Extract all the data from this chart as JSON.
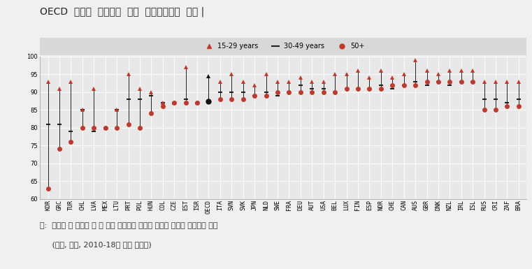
{
  "title": "OECD  국가의  연령층에  따른  사회적관계의  비교 |",
  "note_line1": "주:  필요할 때 도움을 줄 수 있는 친척이나 친구가 있다고 보고한 사람들의 비율",
  "note_line2": "     (연령, 비율, 2010-18년 통합 데이터)",
  "countries": [
    "KOR",
    "GRC",
    "TUR",
    "CHL",
    "LVA",
    "MEX",
    "LTU",
    "PRT",
    "POL",
    "HUN",
    "COL",
    "CZE",
    "EST",
    "ISR",
    "OECD",
    "ITA",
    "SVN",
    "SVK",
    "JPN",
    "NLD",
    "SWE",
    "FRA",
    "DEU",
    "AUT",
    "USA",
    "BEL",
    "LUX",
    "FIN",
    "ESP",
    "NOR",
    "CHE",
    "CAN",
    "AUS",
    "GBR",
    "DNK",
    "NZL",
    "IRL",
    "ISL",
    "RUS",
    "CRI",
    "ZAF",
    "BRA"
  ],
  "y15_29": [
    93,
    91,
    93,
    85,
    91,
    80,
    85,
    95,
    91,
    90,
    87,
    87,
    97,
    87,
    94.5,
    93,
    95,
    93,
    92,
    95,
    93,
    93,
    94,
    93,
    93,
    95,
    95,
    96,
    94,
    96,
    94,
    95,
    99,
    96,
    95,
    96,
    96,
    96,
    93,
    93,
    93,
    93
  ],
  "y30_49": [
    81,
    81,
    79,
    85,
    79,
    80,
    85,
    88,
    88,
    89,
    87,
    87,
    88,
    87,
    87.5,
    90,
    90,
    90,
    89,
    90,
    89,
    90,
    92,
    91,
    91,
    90,
    91,
    91,
    91,
    92,
    91,
    92,
    93,
    92,
    93,
    92,
    93,
    93,
    88,
    88,
    87,
    88
  ],
  "y50plus": [
    63,
    74,
    76,
    80,
    80,
    80,
    80,
    81,
    80,
    84,
    86,
    87,
    87,
    87,
    87.5,
    88,
    88,
    88,
    89,
    89,
    90,
    90,
    90,
    90,
    90,
    90,
    91,
    91,
    91,
    91,
    92,
    92,
    92,
    93,
    93,
    93,
    93,
    93,
    85,
    85,
    86,
    86
  ],
  "oecd_index": 14,
  "ylim": [
    60,
    100
  ],
  "yticks": [
    60,
    65,
    70,
    75,
    80,
    85,
    90,
    95,
    100
  ],
  "plot_bg_color": "#e8e8e8",
  "fig_bg_color": "#f0f0f0",
  "legend_bg_color": "#d8d8d8",
  "line_color": "#222222",
  "marker_color": "#c0392b",
  "grid_color": "#ffffff",
  "legend_triangle": "15-29 years",
  "legend_dash": "30-49 years",
  "legend_circle": "50+",
  "title_fontsize": 10,
  "tick_fontsize": 6,
  "note_fontsize": 8
}
